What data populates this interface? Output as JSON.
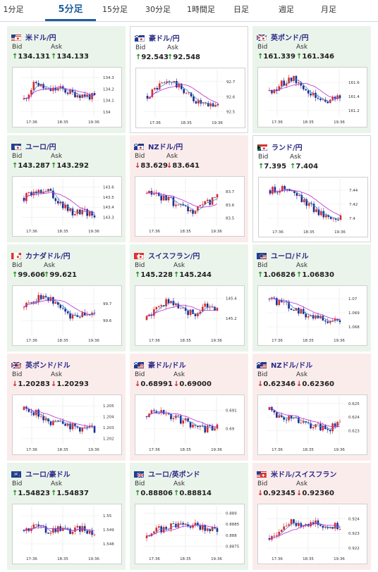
{
  "tabs": [
    {
      "label": "1分足",
      "active": false
    },
    {
      "label": "5分足",
      "active": true
    },
    {
      "label": "15分足",
      "active": false
    },
    {
      "label": "30分足",
      "active": false
    },
    {
      "label": "1時間足",
      "active": false
    },
    {
      "label": "日足",
      "active": false
    },
    {
      "label": "週足",
      "active": false
    },
    {
      "label": "月足",
      "active": false
    }
  ],
  "labels": {
    "bid": "Bid",
    "ask": "Ask"
  },
  "colors": {
    "up_bg": "#eaf4ea",
    "down_bg": "#fbecec",
    "candle_up": "#d92a2a",
    "candle_down": "#1f2c8f",
    "ma_short": "#3a8bd6",
    "ma_long": "#b82bd6"
  },
  "cards": [
    {
      "pair": "米ドル/円",
      "flag": "us-jp",
      "trend": "up",
      "bid": "134.131",
      "ask": "134.133",
      "chart": {
        "x_ticks": [
          "17:36",
          "18:35",
          "19:36"
        ],
        "y_ticks": [
          "134.3",
          "134.2",
          "134.1",
          "134"
        ],
        "ymin": 133.98,
        "ymax": 134.35
      }
    },
    {
      "pair": "豪ドル/円",
      "flag": "au-jp",
      "trend": "neutral",
      "bid": "92.543",
      "ask": "92.548",
      "chart": {
        "x_ticks": [
          "17:36",
          "18:35",
          "19:36"
        ],
        "y_ticks": [
          "92.7",
          "92.6",
          "92.5"
        ],
        "ymin": 92.48,
        "ymax": 92.76
      }
    },
    {
      "pair": "英ポンド/円",
      "flag": "gb-jp",
      "trend": "up",
      "bid": "161.339",
      "ask": "161.346",
      "chart": {
        "x_ticks": [
          "17:36",
          "18:35",
          "19:36"
        ],
        "y_ticks": [
          "161.6",
          "161.4",
          "161.2"
        ],
        "ymin": 161.15,
        "ymax": 161.75
      }
    },
    {
      "pair": "ユーロ/円",
      "flag": "eu-jp",
      "trend": "up",
      "bid": "143.287",
      "ask": "143.292",
      "chart": {
        "x_ticks": [
          "17:36",
          "18:35",
          "19:36"
        ],
        "y_ticks": [
          "143.6",
          "143.5",
          "143.4",
          "143.3"
        ],
        "ymin": 143.24,
        "ymax": 143.66
      }
    },
    {
      "pair": "NZドル/円",
      "flag": "nz-jp",
      "trend": "down",
      "bid": "83.629",
      "ask": "83.641",
      "chart": {
        "x_ticks": [
          "17:36",
          "18:35",
          "19:36"
        ],
        "y_ticks": [
          "83.7",
          "83.6",
          "83.5"
        ],
        "ymin": 83.46,
        "ymax": 83.78
      }
    },
    {
      "pair": "ランド/円",
      "flag": "za-jp",
      "trend": "neutral",
      "bid": "7.395",
      "ask": "7.404",
      "chart": {
        "x_ticks": [
          "17:36",
          "18:35",
          "19:36"
        ],
        "y_ticks": [
          "7.44",
          "7.42",
          "7.4"
        ],
        "ymin": 7.392,
        "ymax": 7.452
      }
    },
    {
      "pair": "カナダドル/円",
      "flag": "ca-jp",
      "trend": "up",
      "bid": "99.606",
      "ask": "99.621",
      "chart": {
        "x_ticks": [
          "17:36",
          "18:35",
          "19:36"
        ],
        "y_ticks": [
          "99.7",
          "99.6"
        ],
        "ymin": 99.53,
        "ymax": 99.78
      }
    },
    {
      "pair": "スイスフラン/円",
      "flag": "ch-jp",
      "trend": "up",
      "bid": "145.228",
      "ask": "145.244",
      "chart": {
        "x_ticks": [
          "17:36",
          "18:35",
          "19:36"
        ],
        "y_ticks": [
          "145.4",
          "145.2"
        ],
        "ymin": 145.06,
        "ymax": 145.48
      }
    },
    {
      "pair": "ユーロ/ドル",
      "flag": "eu-us",
      "trend": "up",
      "bid": "1.06826",
      "ask": "1.06830",
      "chart": {
        "x_ticks": [
          "17:36",
          "18:35",
          "19:36"
        ],
        "y_ticks": [
          "1.07",
          "1.069",
          "1.068"
        ],
        "ymin": 1.0676,
        "ymax": 1.0706
      }
    },
    {
      "pair": "英ポンド/ドル",
      "flag": "gb-us",
      "trend": "down",
      "bid": "1.20283",
      "ask": "1.20293",
      "chart": {
        "x_ticks": [
          "17:36",
          "18:35",
          "19:36"
        ],
        "y_ticks": [
          "1.205",
          "1.204",
          "1.203",
          "1.202"
        ],
        "ymin": 1.2017,
        "ymax": 1.2056
      }
    },
    {
      "pair": "豪ドル/ドル",
      "flag": "au-us",
      "trend": "down",
      "bid": "0.68991",
      "ask": "0.69000",
      "chart": {
        "x_ticks": [
          "17:36",
          "18:35",
          "19:36"
        ],
        "y_ticks": [
          "0.691",
          "0.69"
        ],
        "ymin": 0.6893,
        "ymax": 0.6916
      }
    },
    {
      "pair": "NZドル/ドル",
      "flag": "nz-us",
      "trend": "down",
      "bid": "0.62346",
      "ask": "0.62360",
      "chart": {
        "x_ticks": [
          "17:36",
          "18:35",
          "19:36"
        ],
        "y_ticks": [
          "0.625",
          "0.624",
          "0.623"
        ],
        "ymin": 0.6222,
        "ymax": 0.6253
      }
    },
    {
      "pair": "ユーロ/豪ドル",
      "flag": "eu-au",
      "trend": "up",
      "bid": "1.54823",
      "ask": "1.54837",
      "chart": {
        "x_ticks": [
          "17:36",
          "18:35",
          "19:36"
        ],
        "y_ticks": [
          "1.55",
          "1.549",
          "1.548"
        ],
        "ymin": 1.5475,
        "ymax": 1.5505
      }
    },
    {
      "pair": "ユーロ/英ポンド",
      "flag": "eu-gb",
      "trend": "up",
      "bid": "0.88806",
      "ask": "0.88814",
      "chart": {
        "x_ticks": [
          "17:36",
          "18:35",
          "19:36"
        ],
        "y_ticks": [
          "0.889",
          "0.8885",
          "0.888",
          "0.8875"
        ],
        "ymin": 0.8873,
        "ymax": 0.8892
      }
    },
    {
      "pair": "米ドル/スイスフラン",
      "flag": "us-ch",
      "trend": "down",
      "bid": "0.92345",
      "ask": "0.92360",
      "chart": {
        "x_ticks": [
          "17:36",
          "18:35",
          "19:36"
        ],
        "y_ticks": [
          "0.924",
          "0.923",
          "0.922"
        ],
        "ymin": 0.9218,
        "ymax": 0.9247
      }
    }
  ]
}
